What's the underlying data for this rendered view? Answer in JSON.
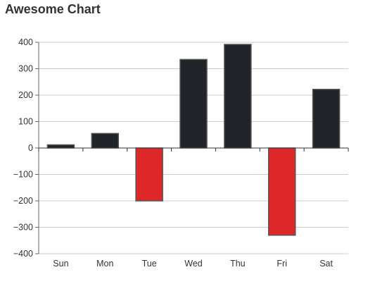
{
  "chart_data": {
    "type": "bar",
    "title": "Awesome Chart",
    "xlabel": "",
    "ylabel": "",
    "categories": [
      "Sun",
      "Mon",
      "Tue",
      "Wed",
      "Thu",
      "Fri",
      "Sat"
    ],
    "values": [
      12,
      55,
      -200,
      335,
      392,
      -330,
      222
    ],
    "ylim": [
      -400,
      400
    ],
    "yticks": [
      -400,
      -300,
      -200,
      -100,
      0,
      100,
      200,
      300,
      400
    ],
    "grid": true,
    "colors": {
      "positive": "#212428",
      "negative": "#dd2729",
      "stroke": "#555555"
    }
  }
}
